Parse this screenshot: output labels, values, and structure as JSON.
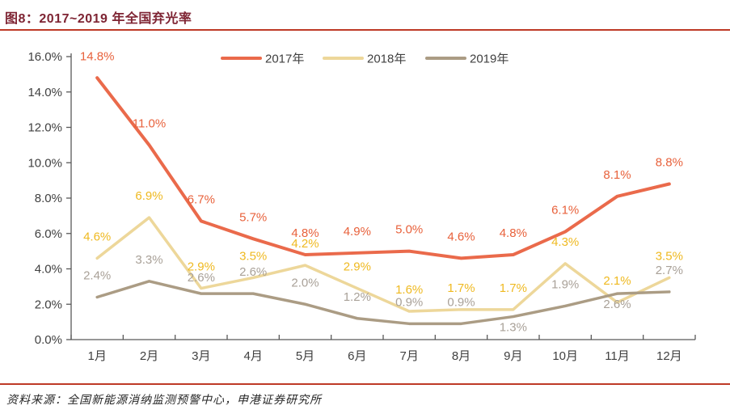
{
  "header": {
    "title": "图8：2017~2019 年全国弃光率"
  },
  "footer": {
    "source": "资料来源：全国新能源消纳监测预警中心，申港证券研究所"
  },
  "colors": {
    "title": "#7E2433",
    "rule": "#BE3A26",
    "axis_line": "#595959",
    "axis_text": "#404040",
    "legend_text": "#404040"
  },
  "chart_data": {
    "type": "line",
    "title": "2017~2019 年全国弃光率",
    "categories": [
      "1月",
      "2月",
      "3月",
      "4月",
      "5月",
      "6月",
      "7月",
      "8月",
      "9月",
      "10月",
      "11月",
      "12月"
    ],
    "series": [
      {
        "name": "2017年",
        "values": [
          14.8,
          11.0,
          6.7,
          5.7,
          4.8,
          4.9,
          5.0,
          4.6,
          4.8,
          6.1,
          8.1,
          8.8
        ],
        "line_color": "#EA6A4B",
        "label_color": "#E8613B",
        "line_width": 4
      },
      {
        "name": "2018年",
        "values": [
          4.6,
          6.9,
          2.9,
          3.5,
          4.2,
          2.9,
          1.6,
          1.7,
          1.7,
          4.3,
          2.1,
          3.5
        ],
        "line_color": "#EDD79A",
        "label_color": "#EFB920",
        "line_width": 3.5
      },
      {
        "name": "2019年",
        "values": [
          2.4,
          3.3,
          2.6,
          2.6,
          2.0,
          1.2,
          0.9,
          0.9,
          1.3,
          1.9,
          2.6,
          2.7
        ],
        "line_color": "#AB9C84",
        "label_color": "#A9A198",
        "line_width": 3.5
      }
    ],
    "ylim": [
      0,
      16
    ],
    "y_tick_step": 2,
    "y_tick_labels": [
      "0.0%",
      "2.0%",
      "4.0%",
      "6.0%",
      "8.0%",
      "10.0%",
      "12.0%",
      "14.0%",
      "16.0%"
    ],
    "data_label_format": "{value}%",
    "data_label_decimals": 1,
    "grid": false,
    "legend_position": "top-center",
    "label_overrides": [
      {
        "series": 2,
        "index": 2,
        "dy": 7
      },
      {
        "series": 2,
        "index": 8,
        "below": true
      },
      {
        "series": 2,
        "index": 10,
        "below": true
      }
    ]
  }
}
